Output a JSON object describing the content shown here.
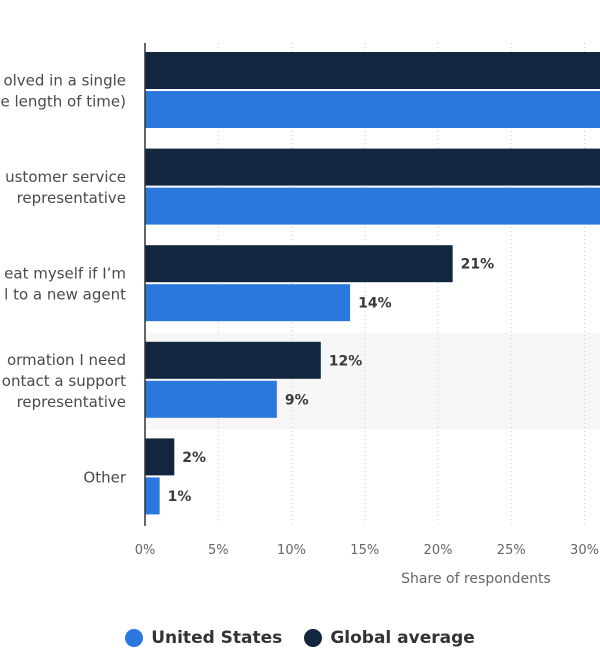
{
  "chart_data": {
    "type": "bar",
    "orientation": "horizontal",
    "categories": [
      [
        "olved in a single",
        "e length of time)"
      ],
      [
        "ustomer service",
        "representative"
      ],
      [
        "eat myself if I’m",
        "l to a new agent"
      ],
      [
        "ormation I need",
        "ontact a support",
        "representative"
      ],
      [
        "Other"
      ]
    ],
    "series": [
      {
        "name": "Global average",
        "color": "#12263f",
        "values": [
          null,
          null,
          21,
          12,
          2
        ]
      },
      {
        "name": "United States",
        "color": "#2a77de",
        "values": [
          null,
          null,
          14,
          9,
          1
        ]
      }
    ],
    "bars_extending_past_view": [
      true,
      true,
      false,
      false,
      false
    ],
    "value_labels": [
      [
        "",
        ""
      ],
      [
        "",
        ""
      ],
      [
        "21%",
        "14%"
      ],
      [
        "12%",
        "9%"
      ],
      [
        "2%",
        "1%"
      ]
    ],
    "xlim": [
      0,
      30
    ],
    "x_ticks": [
      "0%",
      "5%",
      "10%",
      "15%",
      "20%",
      "25%",
      "30%"
    ],
    "xlabel": "Share of respondents",
    "ylabel": "",
    "title": "",
    "grid": "dotted vertical",
    "legend_position": "bottom-center"
  },
  "legend": [
    {
      "label": "United States",
      "color": "#2a77de"
    },
    {
      "label": "Global average",
      "color": "#12263f"
    }
  ]
}
